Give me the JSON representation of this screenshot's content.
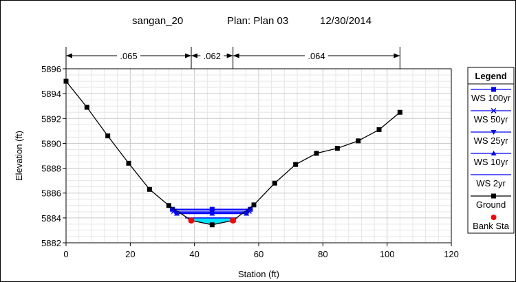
{
  "title": {
    "river": "sangan_20",
    "plan": "Plan: Plan 03",
    "date": "12/30/2014"
  },
  "chart_data": {
    "type": "line",
    "xlabel": "Station (ft)",
    "ylabel": "Elevation (ft)",
    "xlim": [
      0,
      120
    ],
    "ylim": [
      5882,
      5896
    ],
    "xticks": [
      0,
      20,
      40,
      60,
      80,
      100,
      120
    ],
    "yticks": [
      5882,
      5884,
      5886,
      5888,
      5890,
      5892,
      5894,
      5896
    ],
    "grid": true,
    "legend_title": "Legend",
    "legend_position": "right",
    "mannings_n": [
      {
        "label": ".065",
        "from": 0,
        "to": 39
      },
      {
        "label": ".062",
        "from": 39,
        "to": 52
      },
      {
        "label": ".064",
        "from": 52,
        "to": 104
      }
    ],
    "ground": {
      "name": "Ground",
      "color": "#000000",
      "x": [
        0,
        6.5,
        13,
        19.5,
        26,
        32,
        39,
        45.5,
        52,
        58.5,
        65,
        71.5,
        78,
        84.5,
        91,
        97.5,
        104
      ],
      "y": [
        5895,
        5892.9,
        5890.6,
        5888.4,
        5886.3,
        5885.0,
        5883.8,
        5883.45,
        5883.8,
        5885.05,
        5886.8,
        5888.3,
        5889.2,
        5889.6,
        5890.2,
        5891.1,
        5892.5
      ]
    },
    "bank_stations": {
      "name": "Bank Sta",
      "color": "#ff0000",
      "x": [
        39,
        52
      ],
      "y": [
        5883.8,
        5883.8
      ]
    },
    "water_surfaces": [
      {
        "name": "WS 100yr",
        "elev": 5884.7,
        "color": "#0000ff",
        "marker": "square",
        "x": [
          33.1,
          57.4
        ],
        "markers_x": [
          33.1,
          45.5,
          57.4
        ]
      },
      {
        "name": "WS 50yr",
        "elev": 5884.55,
        "color": "#0000ff",
        "marker": "x",
        "x": [
          33.6,
          57.0
        ],
        "markers_x": [
          33.6,
          45.5,
          57.0
        ]
      },
      {
        "name": "WS 25yr",
        "elev": 5884.45,
        "color": "#0000ff",
        "marker": "triangle-down",
        "x": [
          34.0,
          56.6
        ],
        "markers_x": [
          34.0,
          45.5,
          56.6
        ]
      },
      {
        "name": "WS 10yr",
        "elev": 5884.35,
        "color": "#0000ff",
        "marker": "triangle-up",
        "x": [
          34.5,
          56.2
        ],
        "markers_x": [
          34.5,
          45.5,
          56.2
        ]
      },
      {
        "name": "WS 2yr",
        "elev": 5884.0,
        "color": "#0000ff",
        "marker": "none",
        "x": [
          37.1,
          53.4
        ],
        "markers_x": []
      }
    ],
    "fill_color": "#00e5ff"
  }
}
